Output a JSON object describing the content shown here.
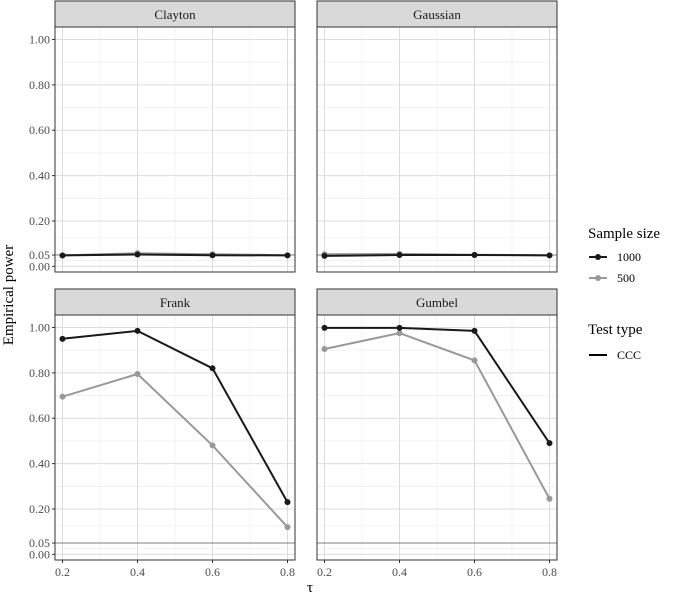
{
  "chart_data": {
    "type": "line",
    "facet_by": "copula",
    "xlabel": "τ",
    "ylabel": "Empirical power",
    "x": [
      0.2,
      0.4,
      0.6,
      0.8
    ],
    "x_tick_labels": [
      "0.2",
      "0.4",
      "0.6",
      "0.8"
    ],
    "xlim": [
      0.18,
      0.82
    ],
    "ylim": [
      -0.025,
      1.055
    ],
    "y_ticks": [
      0.0,
      0.05,
      0.2,
      0.4,
      0.6,
      0.8,
      1.0
    ],
    "y_tick_labels": [
      "0.00",
      "0.05",
      "0.20",
      "0.40",
      "0.60",
      "0.80",
      "1.00"
    ],
    "reference_line": 0.05,
    "grid": true,
    "legend_position": "right",
    "legends": [
      {
        "title": "Sample size",
        "entries": [
          {
            "label": "1000",
            "color": "#1a1a1a",
            "shape": "point-line"
          },
          {
            "label": "500",
            "color": "#999999",
            "shape": "point-line"
          }
        ]
      },
      {
        "title": "Test type",
        "entries": [
          {
            "label": "CCC",
            "color": "#000000",
            "shape": "line"
          }
        ]
      }
    ],
    "panels": [
      {
        "title": "Clayton",
        "series": [
          {
            "name": "1000",
            "color": "#1a1a1a",
            "values": [
              0.048,
              0.052,
              0.049,
              0.048
            ]
          },
          {
            "name": "500",
            "color": "#999999",
            "values": [
              0.048,
              0.058,
              0.053,
              0.049
            ]
          }
        ]
      },
      {
        "title": "Gaussian",
        "series": [
          {
            "name": "1000",
            "color": "#1a1a1a",
            "values": [
              0.046,
              0.05,
              0.05,
              0.048
            ]
          },
          {
            "name": "500",
            "color": "#999999",
            "values": [
              0.053,
              0.055,
              0.051,
              0.049
            ]
          }
        ]
      },
      {
        "title": "Frank",
        "series": [
          {
            "name": "1000",
            "color": "#1a1a1a",
            "values": [
              0.95,
              0.985,
              0.82,
              0.23
            ]
          },
          {
            "name": "500",
            "color": "#999999",
            "values": [
              0.695,
              0.795,
              0.48,
              0.12
            ]
          }
        ]
      },
      {
        "title": "Gumbel",
        "series": [
          {
            "name": "1000",
            "color": "#1a1a1a",
            "values": [
              0.998,
              0.998,
              0.985,
              0.49
            ]
          },
          {
            "name": "500",
            "color": "#999999",
            "values": [
              0.905,
              0.975,
              0.855,
              0.245
            ]
          }
        ]
      }
    ]
  }
}
